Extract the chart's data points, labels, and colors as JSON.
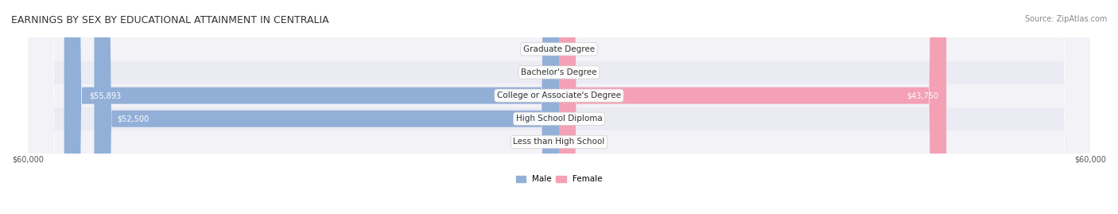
{
  "title": "EARNINGS BY SEX BY EDUCATIONAL ATTAINMENT IN CENTRALIA",
  "source": "Source: ZipAtlas.com",
  "max_val": 60000,
  "categories": [
    "Less than High School",
    "High School Diploma",
    "College or Associate's Degree",
    "Bachelor's Degree",
    "Graduate Degree"
  ],
  "male_values": [
    0,
    52500,
    55893,
    0,
    0
  ],
  "female_values": [
    0,
    0,
    43750,
    0,
    0
  ],
  "male_color": "#92afd7",
  "female_color": "#f4a0b5",
  "male_label_color": "#ffffff",
  "female_label_color": "#ffffff",
  "bar_bg_color": "#e8e8ee",
  "row_bg_colors": [
    "#f0f0f5",
    "#e8e8f0"
  ],
  "title_fontsize": 9,
  "source_fontsize": 7,
  "label_fontsize": 7.5,
  "value_fontsize": 7,
  "axis_label_fontsize": 7,
  "legend_fontsize": 7.5
}
